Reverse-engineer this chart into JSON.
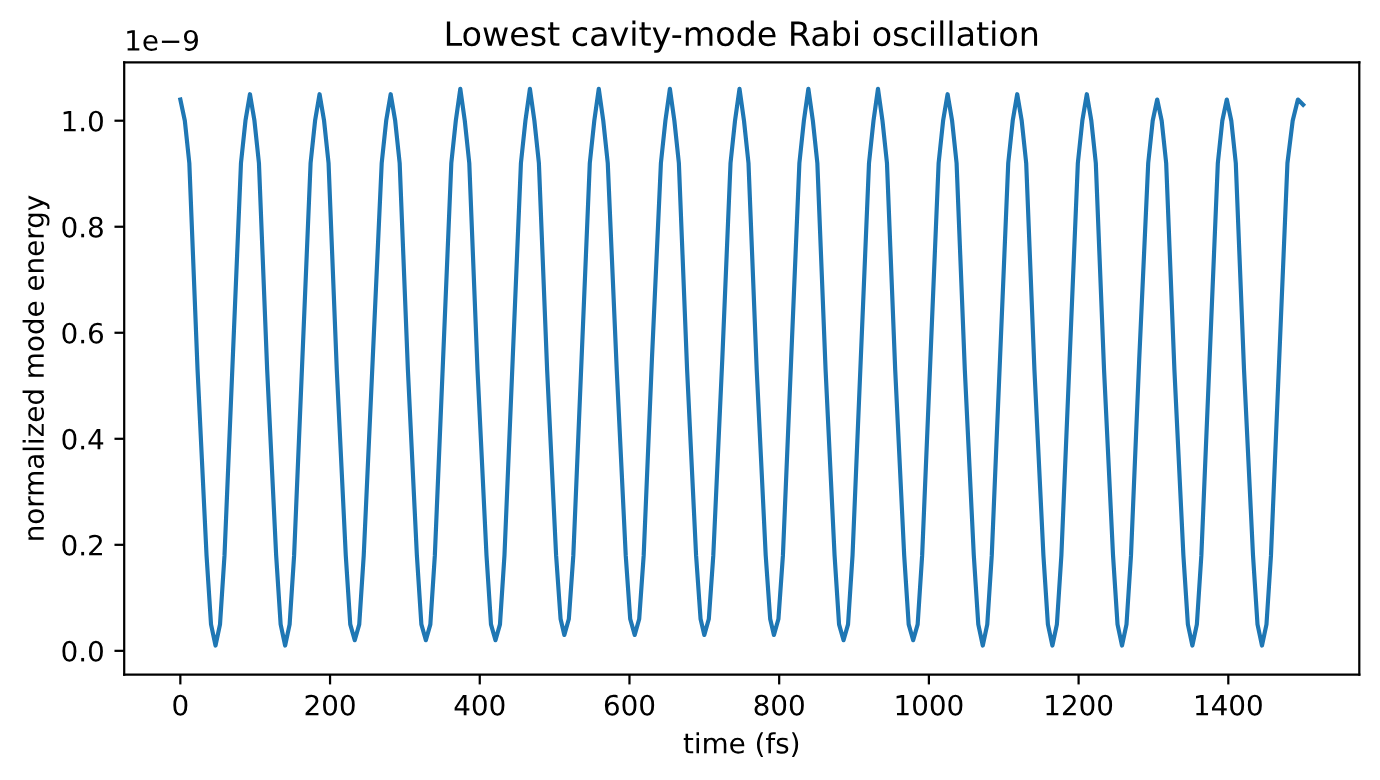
{
  "chart_data": {
    "type": "line",
    "title": "Lowest cavity-mode Rabi oscillation",
    "xlabel": "time (fs)",
    "ylabel": "normalized mode energy",
    "annotations": [
      "1e−9"
    ],
    "x": [
      0,
      6,
      12,
      23,
      35,
      41,
      47,
      53,
      59,
      70,
      81,
      87,
      93,
      99,
      105,
      116,
      128,
      134,
      140,
      146,
      152,
      163,
      174,
      180,
      186,
      192,
      198,
      209,
      221,
      227,
      233,
      239,
      245,
      257,
      269,
      275,
      281,
      287,
      293,
      304,
      316,
      322,
      328,
      334,
      340,
      351,
      362,
      368,
      374,
      380,
      386,
      397,
      409,
      415,
      421,
      427,
      433,
      444,
      455,
      461,
      467,
      473,
      479,
      490,
      502,
      508,
      513,
      519,
      525,
      536,
      547,
      553,
      559,
      565,
      571,
      583,
      595,
      601,
      607,
      613,
      619,
      630,
      642,
      648,
      654,
      660,
      666,
      677,
      689,
      695,
      700,
      706,
      712,
      724,
      735,
      741,
      747,
      753,
      759,
      770,
      782,
      788,
      793,
      799,
      805,
      816,
      827,
      833,
      839,
      845,
      851,
      862,
      874,
      880,
      886,
      892,
      898,
      909,
      920,
      926,
      932,
      938,
      944,
      955,
      967,
      973,
      979,
      985,
      991,
      1002,
      1013,
      1019,
      1025,
      1031,
      1037,
      1048,
      1060,
      1066,
      1072,
      1078,
      1084,
      1095,
      1106,
      1112,
      1118,
      1124,
      1130,
      1141,
      1153,
      1159,
      1165,
      1171,
      1177,
      1188,
      1199,
      1205,
      1211,
      1217,
      1223,
      1234,
      1246,
      1252,
      1258,
      1264,
      1270,
      1281,
      1293,
      1299,
      1305,
      1311,
      1317,
      1328,
      1340,
      1346,
      1352,
      1358,
      1364,
      1375,
      1386,
      1392,
      1398,
      1404,
      1410,
      1421,
      1433,
      1439,
      1445,
      1451,
      1457,
      1468,
      1479,
      1486,
      1493,
      1500
    ],
    "series": [
      {
        "color": "#1f77b4",
        "values": [
          1.04,
          1.0,
          0.92,
          0.53,
          0.18,
          0.05,
          0.01,
          0.05,
          0.18,
          0.55,
          0.92,
          1.0,
          1.05,
          1.0,
          0.92,
          0.53,
          0.18,
          0.05,
          0.01,
          0.05,
          0.18,
          0.55,
          0.92,
          1.0,
          1.05,
          1.0,
          0.92,
          0.53,
          0.18,
          0.05,
          0.02,
          0.05,
          0.18,
          0.55,
          0.92,
          1.0,
          1.05,
          1.0,
          0.92,
          0.53,
          0.18,
          0.05,
          0.02,
          0.05,
          0.18,
          0.55,
          0.92,
          1.0,
          1.06,
          1.0,
          0.92,
          0.53,
          0.18,
          0.05,
          0.02,
          0.05,
          0.18,
          0.55,
          0.92,
          1.0,
          1.06,
          1.0,
          0.92,
          0.53,
          0.18,
          0.06,
          0.03,
          0.06,
          0.18,
          0.55,
          0.92,
          1.0,
          1.06,
          1.0,
          0.92,
          0.53,
          0.18,
          0.06,
          0.03,
          0.06,
          0.18,
          0.55,
          0.92,
          1.0,
          1.06,
          1.0,
          0.92,
          0.53,
          0.18,
          0.06,
          0.03,
          0.06,
          0.18,
          0.55,
          0.92,
          1.0,
          1.06,
          1.0,
          0.92,
          0.53,
          0.18,
          0.06,
          0.03,
          0.06,
          0.18,
          0.55,
          0.92,
          1.0,
          1.06,
          1.0,
          0.92,
          0.53,
          0.18,
          0.05,
          0.02,
          0.05,
          0.18,
          0.55,
          0.92,
          1.0,
          1.06,
          1.0,
          0.92,
          0.53,
          0.18,
          0.05,
          0.02,
          0.05,
          0.18,
          0.55,
          0.92,
          1.0,
          1.05,
          1.0,
          0.92,
          0.53,
          0.18,
          0.05,
          0.01,
          0.05,
          0.18,
          0.55,
          0.92,
          1.0,
          1.05,
          1.0,
          0.92,
          0.53,
          0.18,
          0.05,
          0.01,
          0.05,
          0.18,
          0.55,
          0.92,
          1.0,
          1.05,
          1.0,
          0.92,
          0.53,
          0.18,
          0.05,
          0.01,
          0.05,
          0.18,
          0.55,
          0.92,
          1.0,
          1.04,
          1.0,
          0.92,
          0.53,
          0.18,
          0.05,
          0.01,
          0.05,
          0.18,
          0.55,
          0.92,
          1.0,
          1.04,
          1.0,
          0.92,
          0.53,
          0.18,
          0.05,
          0.01,
          0.05,
          0.18,
          0.55,
          0.92,
          1.0,
          1.04,
          1.03
        ]
      }
    ],
    "xlim": [
      -75,
      1575
    ],
    "xticks": [
      0,
      200,
      400,
      600,
      800,
      1000,
      1200,
      1400
    ],
    "ylim": [
      -0.045,
      1.11
    ],
    "yticks": [
      {
        "value": 0,
        "label": "0.0"
      },
      0.2,
      0.4,
      0.6,
      0.8,
      {
        "value": 1.0,
        "label": "1.0"
      }
    ],
    "grid": false,
    "legend": false,
    "marker": "none",
    "line_style": "solid"
  }
}
